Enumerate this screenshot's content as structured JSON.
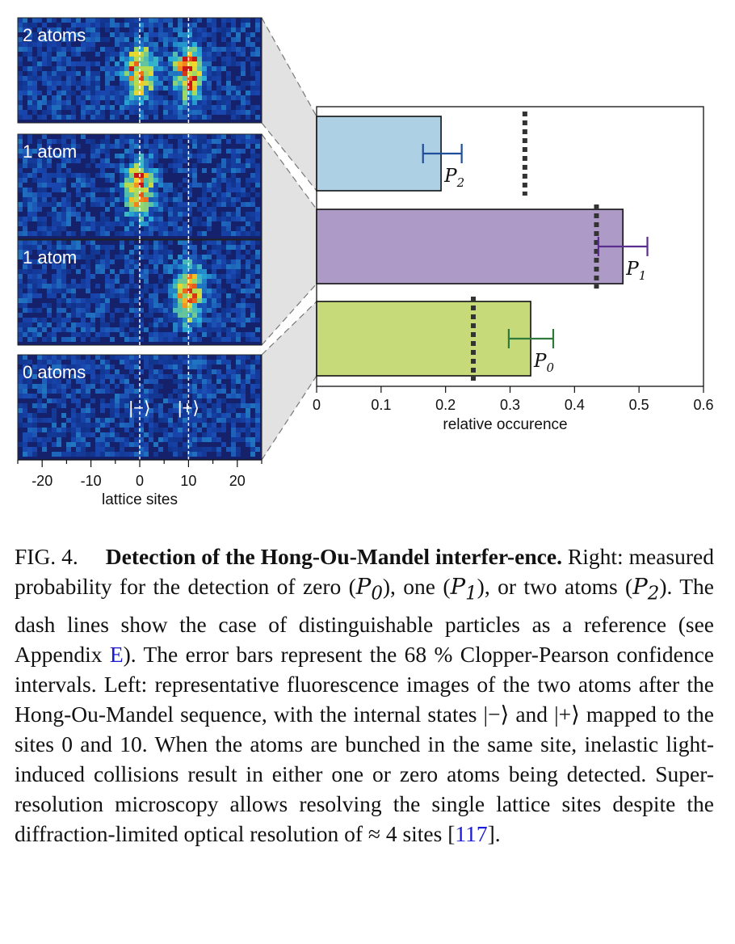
{
  "left_panels": [
    {
      "label": "2 atoms",
      "spots": [
        0,
        10
      ]
    },
    {
      "label": "1 atom",
      "spots": [
        0
      ]
    },
    {
      "label": "1 atom",
      "spots": [
        10
      ]
    },
    {
      "label": "0 atoms",
      "spots": []
    }
  ],
  "state_labels": {
    "minus": "|−⟩",
    "plus": "|+⟩"
  },
  "left_axis": {
    "xlabel": "lattice sites",
    "ticks": [
      "-20",
      "-10",
      "0",
      "10",
      "20"
    ],
    "tick_values": [
      -20,
      -10,
      0,
      10,
      20
    ],
    "range": [
      -25,
      25
    ],
    "guide_lines": [
      0,
      10
    ]
  },
  "chart_data": {
    "type": "bar",
    "orientation": "horizontal",
    "xlabel": "relative occurence",
    "xlim": [
      0,
      0.6
    ],
    "xticks": [
      "0",
      "0.1",
      "0.2",
      "0.3",
      "0.4",
      "0.5",
      "0.6"
    ],
    "xtick_values": [
      0,
      0.1,
      0.2,
      0.3,
      0.4,
      0.5,
      0.6
    ],
    "bars": [
      {
        "label": "P2",
        "sub": "2",
        "value": 0.193,
        "err_low": 0.165,
        "err_high": 0.225,
        "reference": 0.323,
        "fill": "#aed0e4",
        "err_color": "#1f4e9a"
      },
      {
        "label": "P1",
        "sub": "1",
        "value": 0.475,
        "err_low": 0.437,
        "err_high": 0.513,
        "reference": 0.434,
        "fill": "#ad9ac7",
        "err_color": "#5b2d8e"
      },
      {
        "label": "P0",
        "sub": "0",
        "value": 0.332,
        "err_low": 0.298,
        "err_high": 0.367,
        "reference": 0.243,
        "fill": "#c6da79",
        "err_color": "#2e7a3a"
      }
    ]
  },
  "caption": {
    "fig_label": "FIG. 4.",
    "bold_title": "Detection of the Hong-Ou-Mandel interfer-ence.",
    "text_a": " Right: measured probability for the detection of zero (",
    "p0": "P",
    "text_b": "), one (",
    "text_c": "), or two atoms (",
    "text_d": "). The dash lines show the case of distinguishable particles as a reference (see Appendix ",
    "appendix_link": "E",
    "text_e": "). The error bars represent the 68 % Clopper-Pearson confidence intervals. Left: representative fluorescence images of the two atoms after the Hong-Ou-Mandel sequence, with the internal states |−⟩ and |+⟩ mapped to the sites 0 and 10. When the atoms are bunched in the same site, inelastic light-induced collisions result in either one or zero atoms being detected. Super-resolution microscopy allows resolving the single lattice sites despite the diffraction-limited optical resolution of ≈ 4 sites [",
    "ref_link": "117",
    "text_f": "]."
  }
}
